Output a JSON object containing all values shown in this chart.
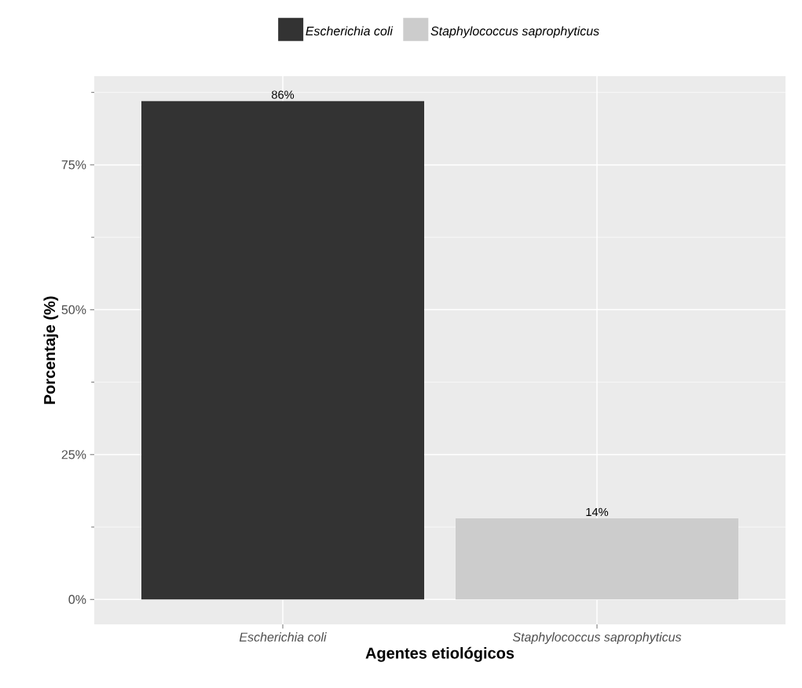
{
  "chart_data": {
    "type": "bar",
    "xlabel": "Agentes etiológicos",
    "ylabel": "Porcentaje (%)",
    "categories": [
      "Escherichia coli",
      "Staphylococcus saprophyticus"
    ],
    "series": [
      {
        "name": "Escherichia coli",
        "color": "#333333",
        "values": [
          86,
          null
        ],
        "value_labels": [
          "86%",
          null
        ]
      },
      {
        "name": "Staphylococcus saprophyticus",
        "color": "#cccccc",
        "values": [
          null,
          14
        ],
        "value_labels": [
          null,
          "14%"
        ]
      }
    ],
    "ylim": [
      -4.3,
      90.3
    ],
    "yticks": [
      {
        "value": 0,
        "label": "0%"
      },
      {
        "value": 25,
        "label": "25%"
      },
      {
        "value": 50,
        "label": "50%"
      },
      {
        "value": 75,
        "label": "75%"
      }
    ],
    "grid": true,
    "legend": "top"
  }
}
